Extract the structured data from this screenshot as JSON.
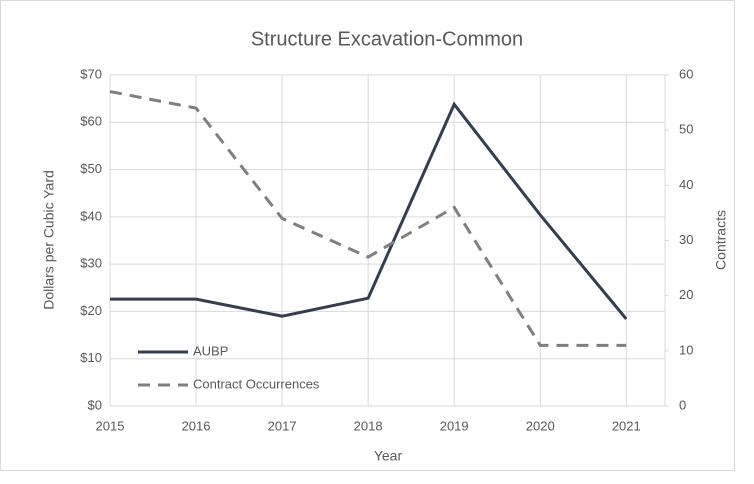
{
  "chart_data": {
    "type": "line",
    "title": "Structure Excavation-Common",
    "x_label": "Year",
    "y_label": "Dollars per Cubic Yard",
    "y2_label": "Contracts",
    "x": [
      2015,
      2016,
      2017,
      2018,
      2019,
      2020,
      2021
    ],
    "xlim": [
      2015,
      2021.45
    ],
    "xticks": [
      2015,
      2016,
      2017,
      2018,
      2019,
      2020,
      2021
    ],
    "ylim": [
      0,
      70
    ],
    "yticks": [
      {
        "value": 0,
        "label": "$0"
      },
      {
        "value": 10,
        "label": "$10"
      },
      {
        "value": 20,
        "label": "$20"
      },
      {
        "value": 30,
        "label": "$30"
      },
      {
        "value": 40,
        "label": "$40"
      },
      {
        "value": 50,
        "label": "$50"
      },
      {
        "value": 60,
        "label": "$60"
      },
      {
        "value": 70,
        "label": "$70"
      }
    ],
    "y2lim": [
      0,
      60
    ],
    "y2ticks": [
      0,
      10,
      20,
      30,
      40,
      50,
      60
    ],
    "grid": true,
    "legend": "lower left",
    "series": [
      {
        "name": "AUBP",
        "color": "#333f50",
        "dash": "solid",
        "values": [
          22.6,
          22.6,
          19.0,
          22.8,
          63.8,
          40.4,
          18.4
        ]
      },
      {
        "name": "Contract Occurrences",
        "color": "#7f7f7f",
        "dash": "dashed",
        "axis": "y2",
        "values": [
          57,
          54,
          34,
          27,
          36,
          11,
          11
        ]
      }
    ]
  }
}
